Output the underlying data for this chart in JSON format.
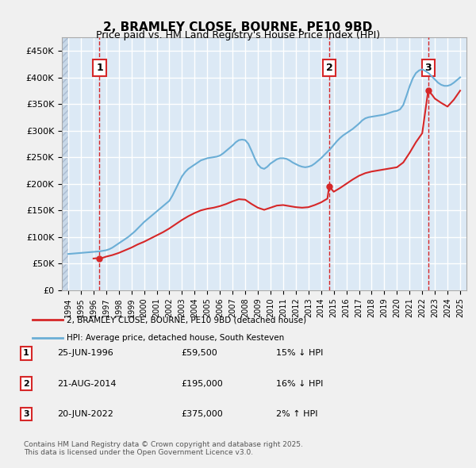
{
  "title": "2, BRAMLEY CLOSE, BOURNE, PE10 9BD",
  "subtitle": "Price paid vs. HM Land Registry's House Price Index (HPI)",
  "background_color": "#dce9f5",
  "plot_bg_color": "#dce9f5",
  "hatch_color": "#c5d8ee",
  "hpi_color": "#6baed6",
  "price_color": "#d62728",
  "ylim": [
    0,
    475000
  ],
  "yticks": [
    0,
    50000,
    100000,
    150000,
    200000,
    250000,
    300000,
    350000,
    400000,
    450000
  ],
  "xlim_start": 1993.5,
  "xlim_end": 2025.5,
  "xticks": [
    1994,
    1995,
    1996,
    1997,
    1998,
    1999,
    2000,
    2001,
    2002,
    2003,
    2004,
    2005,
    2006,
    2007,
    2008,
    2009,
    2010,
    2011,
    2012,
    2013,
    2014,
    2015,
    2016,
    2017,
    2018,
    2019,
    2020,
    2021,
    2022,
    2023,
    2024,
    2025
  ],
  "transactions": [
    {
      "date": 1996.48,
      "price": 59500,
      "label": "1"
    },
    {
      "date": 2014.64,
      "price": 195000,
      "label": "2"
    },
    {
      "date": 2022.47,
      "price": 375000,
      "label": "3"
    }
  ],
  "legend_line1": "2, BRAMLEY CLOSE, BOURNE, PE10 9BD (detached house)",
  "legend_line2": "HPI: Average price, detached house, South Kesteven",
  "table_rows": [
    {
      "num": "1",
      "date": "25-JUN-1996",
      "price": "£59,500",
      "note": "15% ↓ HPI"
    },
    {
      "num": "2",
      "date": "21-AUG-2014",
      "price": "£195,000",
      "note": "16% ↓ HPI"
    },
    {
      "num": "3",
      "date": "20-JUN-2022",
      "price": "£375,000",
      "note": "2% ↑ HPI"
    }
  ],
  "footnote": "Contains HM Land Registry data © Crown copyright and database right 2025.\nThis data is licensed under the Open Government Licence v3.0.",
  "hpi_data_x": [
    1994.0,
    1994.25,
    1994.5,
    1994.75,
    1995.0,
    1995.25,
    1995.5,
    1995.75,
    1996.0,
    1996.25,
    1996.5,
    1996.75,
    1997.0,
    1997.25,
    1997.5,
    1997.75,
    1998.0,
    1998.25,
    1998.5,
    1998.75,
    1999.0,
    1999.25,
    1999.5,
    1999.75,
    2000.0,
    2000.25,
    2000.5,
    2000.75,
    2001.0,
    2001.25,
    2001.5,
    2001.75,
    2002.0,
    2002.25,
    2002.5,
    2002.75,
    2003.0,
    2003.25,
    2003.5,
    2003.75,
    2004.0,
    2004.25,
    2004.5,
    2004.75,
    2005.0,
    2005.25,
    2005.5,
    2005.75,
    2006.0,
    2006.25,
    2006.5,
    2006.75,
    2007.0,
    2007.25,
    2007.5,
    2007.75,
    2008.0,
    2008.25,
    2008.5,
    2008.75,
    2009.0,
    2009.25,
    2009.5,
    2009.75,
    2010.0,
    2010.25,
    2010.5,
    2010.75,
    2011.0,
    2011.25,
    2011.5,
    2011.75,
    2012.0,
    2012.25,
    2012.5,
    2012.75,
    2013.0,
    2013.25,
    2013.5,
    2013.75,
    2014.0,
    2014.25,
    2014.5,
    2014.75,
    2015.0,
    2015.25,
    2015.5,
    2015.75,
    2016.0,
    2016.25,
    2016.5,
    2016.75,
    2017.0,
    2017.25,
    2017.5,
    2017.75,
    2018.0,
    2018.25,
    2018.5,
    2018.75,
    2019.0,
    2019.25,
    2019.5,
    2019.75,
    2020.0,
    2020.25,
    2020.5,
    2020.75,
    2021.0,
    2021.25,
    2021.5,
    2021.75,
    2022.0,
    2022.25,
    2022.5,
    2022.75,
    2023.0,
    2023.25,
    2023.5,
    2023.75,
    2024.0,
    2024.25,
    2024.5,
    2024.75,
    2025.0
  ],
  "hpi_data_y": [
    68000,
    68500,
    69000,
    69500,
    70000,
    70500,
    71000,
    71500,
    72000,
    72500,
    73000,
    74000,
    75000,
    77000,
    80000,
    84000,
    88000,
    92000,
    96000,
    100000,
    105000,
    110000,
    116000,
    122000,
    128000,
    133000,
    138000,
    143000,
    148000,
    153000,
    158000,
    163000,
    168000,
    178000,
    190000,
    202000,
    214000,
    222000,
    228000,
    232000,
    236000,
    240000,
    244000,
    246000,
    248000,
    249000,
    250000,
    251000,
    253000,
    257000,
    262000,
    267000,
    272000,
    278000,
    282000,
    283000,
    282000,
    275000,
    262000,
    248000,
    236000,
    230000,
    228000,
    232000,
    238000,
    242000,
    246000,
    248000,
    248000,
    247000,
    244000,
    240000,
    237000,
    234000,
    232000,
    231000,
    232000,
    234000,
    238000,
    243000,
    248000,
    254000,
    260000,
    266000,
    273000,
    280000,
    286000,
    291000,
    295000,
    299000,
    303000,
    308000,
    313000,
    319000,
    323000,
    325000,
    326000,
    327000,
    328000,
    329000,
    330000,
    332000,
    334000,
    336000,
    337000,
    340000,
    348000,
    365000,
    383000,
    398000,
    408000,
    413000,
    415000,
    412000,
    408000,
    402000,
    396000,
    390000,
    386000,
    384000,
    384000,
    386000,
    390000,
    395000,
    400000
  ],
  "price_line_x": [
    1996.0,
    1996.25,
    1996.48,
    1996.75,
    1997.0,
    1997.5,
    1998.0,
    1998.5,
    1999.0,
    1999.5,
    2000.0,
    2000.5,
    2001.0,
    2001.5,
    2002.0,
    2002.5,
    2003.0,
    2003.5,
    2004.0,
    2004.5,
    2005.0,
    2005.5,
    2006.0,
    2006.5,
    2007.0,
    2007.5,
    2008.0,
    2008.5,
    2009.0,
    2009.5,
    2010.0,
    2010.5,
    2011.0,
    2011.5,
    2012.0,
    2012.5,
    2013.0,
    2013.5,
    2014.0,
    2014.5,
    2014.64,
    2015.0,
    2015.5,
    2016.0,
    2016.5,
    2017.0,
    2017.5,
    2018.0,
    2018.5,
    2019.0,
    2019.5,
    2020.0,
    2020.5,
    2021.0,
    2021.5,
    2022.0,
    2022.47,
    2022.75,
    2023.0,
    2023.5,
    2024.0,
    2024.5,
    2025.0
  ],
  "price_line_y": [
    59500,
    60000,
    59500,
    61000,
    63000,
    66000,
    70000,
    75000,
    80000,
    86000,
    91000,
    97000,
    103000,
    109000,
    116000,
    124000,
    132000,
    139000,
    145000,
    150000,
    153000,
    155000,
    158000,
    162000,
    167000,
    171000,
    170000,
    162000,
    155000,
    151000,
    155000,
    159000,
    160000,
    158000,
    156000,
    155000,
    156000,
    160000,
    165000,
    172000,
    195000,
    185000,
    192000,
    200000,
    208000,
    215000,
    220000,
    223000,
    225000,
    227000,
    229000,
    231000,
    240000,
    258000,
    278000,
    295000,
    375000,
    368000,
    360000,
    352000,
    345000,
    358000,
    375000
  ]
}
